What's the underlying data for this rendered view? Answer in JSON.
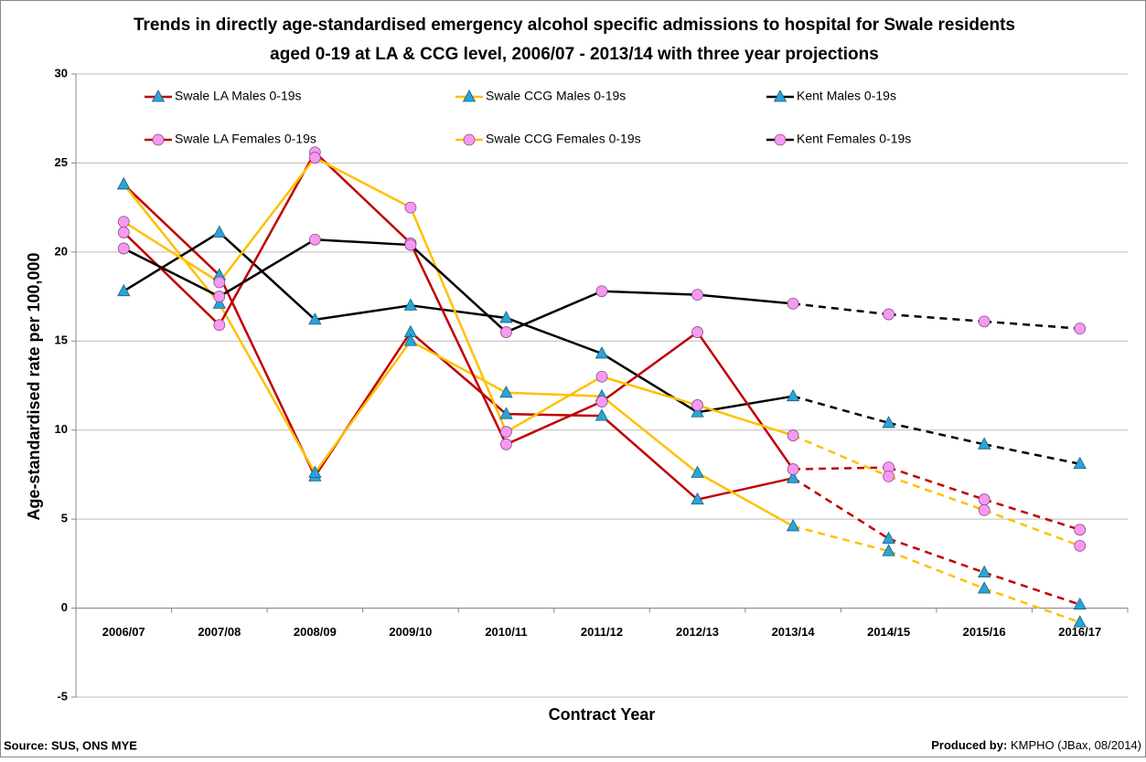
{
  "chart_data": {
    "type": "line",
    "title": [
      "Trends in directly age-standardised emergency alcohol specific admissions to hospital for Swale residents",
      "aged 0-19 at LA & CCG level, 2006/07 - 2013/14 with three year projections"
    ],
    "x_label": "Contract Year",
    "y_label": "Age-standardised rate per 100,000",
    "source": "Source: SUS, ONS MYE",
    "produced_by_label": "Produced by:",
    "produced_by": "KMPHO (JBax, 08/2014)",
    "categories": [
      "2006/07",
      "2007/08",
      "2008/09",
      "2009/10",
      "2010/11",
      "2011/12",
      "2012/13",
      "2013/14",
      "2014/15",
      "2015/16",
      "2016/17"
    ],
    "projection_from": "2013/14",
    "series": [
      {
        "name": "Swale LA Males 0-19s",
        "color": "#c00000",
        "marker": "triangle",
        "values": [
          23.8,
          18.7,
          7.4,
          15.5,
          10.9,
          10.8,
          6.1,
          7.3,
          3.9,
          2.0,
          0.2
        ]
      },
      {
        "name": "Swale CCG Males 0-19s",
        "color": "#ffc000",
        "marker": "triangle",
        "values": [
          23.8,
          17.1,
          7.6,
          15.0,
          12.1,
          11.9,
          7.6,
          4.6,
          3.2,
          1.1,
          -0.8
        ]
      },
      {
        "name": "Kent Males 0-19s",
        "color": "#000000",
        "marker": "triangle",
        "values": [
          17.8,
          21.1,
          16.2,
          17.0,
          16.3,
          14.3,
          11.0,
          11.9,
          10.4,
          9.2,
          8.1
        ]
      },
      {
        "name": "Swale LA Females 0-19s",
        "color": "#c00000",
        "marker": "circle",
        "values": [
          21.1,
          15.9,
          25.6,
          20.5,
          9.2,
          11.6,
          15.5,
          7.8,
          7.9,
          6.1,
          4.4
        ]
      },
      {
        "name": "Swale CCG Females 0-19s",
        "color": "#ffc000",
        "marker": "circle",
        "values": [
          21.7,
          18.3,
          25.3,
          22.5,
          9.9,
          13.0,
          11.4,
          9.7,
          7.4,
          5.5,
          3.5
        ]
      },
      {
        "name": "Kent Females 0-19s",
        "color": "#000000",
        "marker": "circle",
        "values": [
          20.2,
          17.5,
          20.7,
          20.4,
          15.5,
          17.8,
          17.6,
          17.1,
          16.5,
          16.1,
          15.7
        ]
      }
    ],
    "ylim": [
      -5,
      30
    ],
    "yticks": [
      -5,
      0,
      5,
      10,
      15,
      20,
      25,
      30
    ],
    "grid": true,
    "legend": "top"
  }
}
